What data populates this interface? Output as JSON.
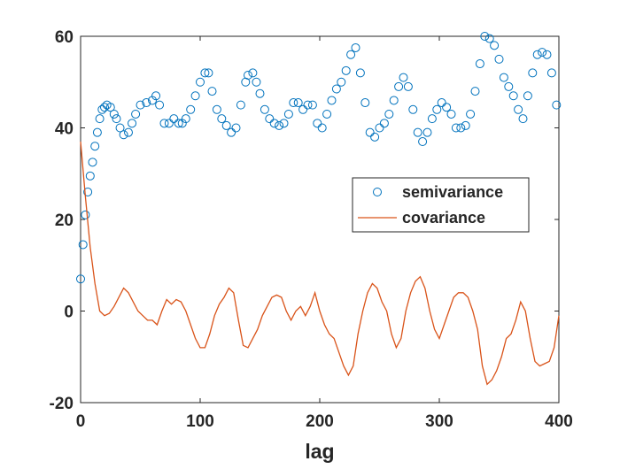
{
  "chart_data": {
    "type": "line",
    "xlabel": "lag",
    "xlim": [
      0,
      400
    ],
    "xticks": [
      0,
      100,
      200,
      300,
      400
    ],
    "ylim": [
      -20,
      60
    ],
    "yticks": [
      -20,
      0,
      20,
      40,
      60
    ],
    "legend": "inside-right",
    "series": [
      {
        "name": "semivariance",
        "color": "#0072BD",
        "marker": "o",
        "x": [
          0,
          2,
          4,
          6,
          8,
          10,
          12,
          14,
          16,
          18,
          20,
          22,
          25,
          28,
          30,
          33,
          36,
          40,
          43,
          46,
          50,
          55,
          60,
          63,
          66,
          70,
          74,
          78,
          82,
          85,
          88,
          92,
          96,
          100,
          104,
          107,
          110,
          114,
          118,
          122,
          126,
          130,
          134,
          138,
          140,
          144,
          147,
          150,
          154,
          158,
          162,
          166,
          170,
          174,
          178,
          182,
          186,
          190,
          194,
          198,
          202,
          206,
          210,
          214,
          218,
          222,
          226,
          230,
          234,
          238,
          242,
          246,
          250,
          254,
          258,
          262,
          266,
          270,
          274,
          278,
          282,
          286,
          290,
          294,
          298,
          302,
          306,
          310,
          314,
          318,
          322,
          326,
          330,
          334,
          338,
          342,
          346,
          350,
          354,
          358,
          362,
          366,
          370,
          374,
          378,
          382,
          386,
          390,
          394,
          398
        ],
        "values": [
          7,
          14.5,
          21,
          26,
          29.5,
          32.5,
          36,
          39,
          42,
          44,
          44.5,
          45,
          44.5,
          43,
          42,
          40,
          38.5,
          39,
          41,
          43,
          45,
          45.5,
          46,
          47,
          45,
          41,
          41,
          42,
          41,
          41,
          42,
          44,
          47,
          50,
          52,
          52,
          48,
          44,
          42,
          40.5,
          39,
          40,
          45,
          50,
          51.5,
          52,
          50,
          47.5,
          44,
          42,
          41,
          40.5,
          41,
          43,
          45.5,
          45.5,
          44,
          45,
          45,
          41,
          40,
          43,
          46,
          48.5,
          50,
          52.5,
          56,
          57.5,
          52,
          45.5,
          39,
          38,
          40,
          41,
          43,
          46,
          49,
          51,
          49,
          44,
          39,
          37,
          39,
          42,
          44,
          45.5,
          44.5,
          43,
          40,
          40,
          40.5,
          43,
          48,
          54,
          60,
          59.5,
          58,
          55,
          51,
          49,
          47,
          44,
          42,
          47,
          52,
          56,
          56.5,
          56,
          52,
          45
        ]
      },
      {
        "name": "covariance",
        "color": "#D95319",
        "marker": "none",
        "x": [
          0,
          4,
          8,
          12,
          16,
          20,
          24,
          28,
          32,
          36,
          40,
          44,
          48,
          52,
          56,
          60,
          64,
          68,
          72,
          76,
          80,
          84,
          88,
          92,
          96,
          100,
          104,
          108,
          112,
          116,
          120,
          124,
          128,
          132,
          136,
          140,
          144,
          148,
          152,
          156,
          160,
          164,
          168,
          172,
          176,
          180,
          184,
          188,
          192,
          196,
          200,
          204,
          208,
          212,
          216,
          220,
          224,
          228,
          232,
          236,
          240,
          244,
          248,
          252,
          256,
          260,
          264,
          268,
          272,
          276,
          280,
          284,
          288,
          292,
          296,
          300,
          304,
          308,
          312,
          316,
          320,
          324,
          328,
          332,
          336,
          340,
          344,
          348,
          352,
          356,
          360,
          364,
          368,
          372,
          376,
          380,
          384,
          388,
          392,
          396,
          400
        ],
        "values": [
          37,
          25,
          14,
          6,
          0,
          -1,
          -0.5,
          1,
          3,
          5,
          4,
          2,
          0,
          -1,
          -2,
          -2,
          -3,
          0,
          2.5,
          1.5,
          2.5,
          2,
          0,
          -3,
          -6,
          -8,
          -8,
          -5,
          -1,
          1.5,
          3,
          5,
          4,
          -2,
          -7.5,
          -8,
          -6,
          -4,
          -1,
          1,
          3,
          3.5,
          3,
          0,
          -2,
          0,
          1,
          -1,
          1,
          4,
          0,
          -3,
          -5,
          -6,
          -9,
          -12,
          -14,
          -12,
          -5,
          0,
          4,
          6,
          5,
          2,
          0,
          -5,
          -8,
          -6,
          0,
          4,
          6.5,
          7.5,
          5,
          0,
          -4,
          -6,
          -3,
          0,
          3,
          4,
          4,
          3,
          0,
          -4,
          -12,
          -16,
          -15,
          -13,
          -10,
          -6,
          -5,
          -2,
          2,
          0,
          -6,
          -11,
          -12,
          -11.5,
          -11,
          -8,
          -1
        ]
      }
    ]
  }
}
